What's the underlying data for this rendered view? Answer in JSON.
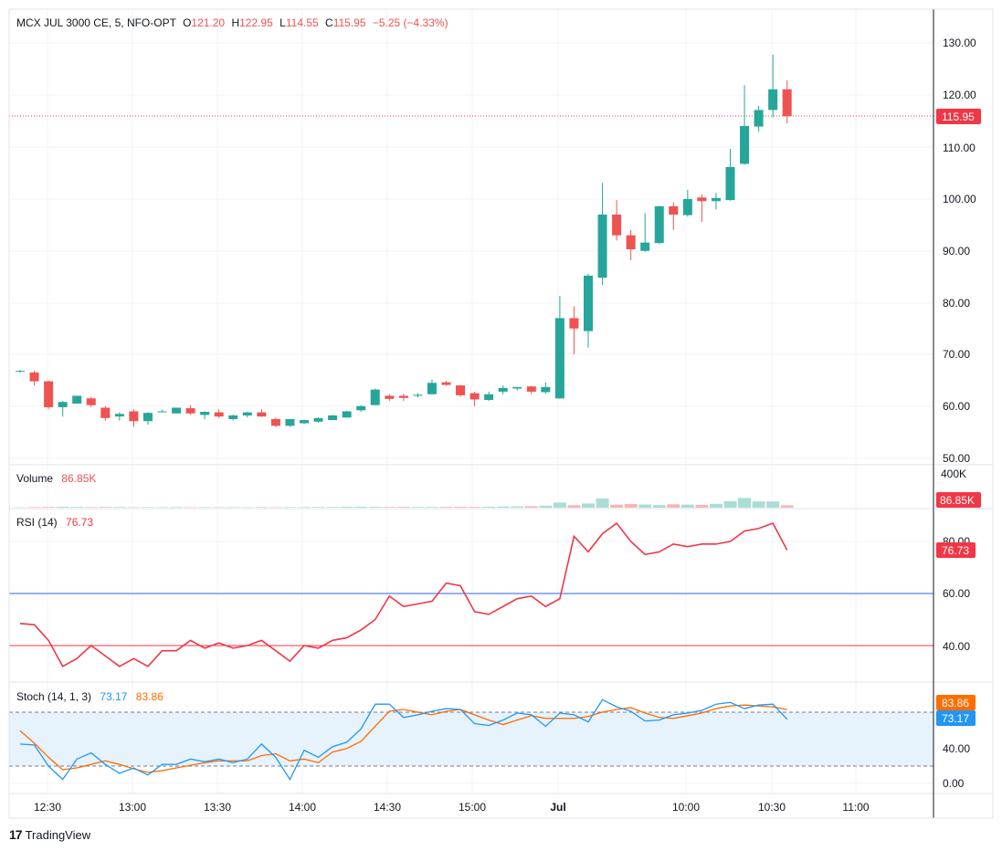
{
  "header": {
    "symbol": "MCX JUL 3000 CE, 5, NFO-OPT",
    "open_label": "O",
    "open": "121.20",
    "high_label": "H",
    "high": "122.95",
    "low_label": "L",
    "low": "114.55",
    "close_label": "C",
    "close": "115.95",
    "change": "−5.25 (−4.33%)"
  },
  "colors": {
    "up": "#26a69a",
    "down": "#ef5350",
    "rsi_line": "#f23645",
    "stoch_k": "#2196f3",
    "stoch_d": "#ff6d00",
    "rsi_upper_band": "#2962ff",
    "rsi_lower_band": "#f23645",
    "stoch_fill": "#e6f2fc",
    "grid": "#f0f3fa",
    "axis_text": "#131722"
  },
  "price_axis": {
    "ticks": [
      "130.00",
      "120.00",
      "110.00",
      "100.00",
      "90.00",
      "80.00",
      "70.00",
      "60.00",
      "50.00"
    ],
    "last_price_label": "115.95"
  },
  "volume_panel": {
    "label": "Volume",
    "value": "86.85K",
    "axis_tick": "400K",
    "badge": "86.85K"
  },
  "rsi_panel": {
    "label": "RSI (14)",
    "value": "76.73",
    "ticks": [
      "80.00",
      "60.00",
      "40.00"
    ],
    "badge": "76.73"
  },
  "stoch_panel": {
    "label": "Stoch (14, 1, 3)",
    "k_value": "73.17",
    "d_value": "83.86",
    "ticks": [
      "40.00",
      "0.00"
    ],
    "k_badge": "73.17",
    "d_badge": "83.86"
  },
  "time_axis": {
    "ticks": [
      "12:30",
      "13:00",
      "13:30",
      "14:00",
      "14:30",
      "15:00",
      "Jul",
      "10:00",
      "10:30",
      "11:00"
    ]
  },
  "brand": {
    "logo": "17",
    "name": "TradingView"
  },
  "chart_data": {
    "type": "candlestick",
    "y_range": [
      50,
      130
    ],
    "candles": [
      {
        "o": 66.8,
        "h": 67.0,
        "l": 66.5,
        "c": 66.8
      },
      {
        "o": 66.5,
        "h": 66.8,
        "l": 64.0,
        "c": 64.8
      },
      {
        "o": 64.8,
        "h": 64.9,
        "l": 59.4,
        "c": 59.8
      },
      {
        "o": 59.8,
        "h": 61.0,
        "l": 58.0,
        "c": 60.8
      },
      {
        "o": 60.5,
        "h": 62.0,
        "l": 60.5,
        "c": 62.0
      },
      {
        "o": 61.5,
        "h": 61.8,
        "l": 59.8,
        "c": 60.2
      },
      {
        "o": 59.7,
        "h": 60.0,
        "l": 57.2,
        "c": 57.7
      },
      {
        "o": 58.0,
        "h": 58.8,
        "l": 57.2,
        "c": 58.5
      },
      {
        "o": 59.0,
        "h": 59.4,
        "l": 56.0,
        "c": 57.1
      },
      {
        "o": 57.1,
        "h": 58.8,
        "l": 56.4,
        "c": 58.7
      },
      {
        "o": 59.0,
        "h": 59.3,
        "l": 58.8,
        "c": 59.0
      },
      {
        "o": 58.6,
        "h": 59.7,
        "l": 58.6,
        "c": 59.7
      },
      {
        "o": 59.6,
        "h": 60.2,
        "l": 58.3,
        "c": 58.6
      },
      {
        "o": 58.3,
        "h": 59.0,
        "l": 57.5,
        "c": 58.9
      },
      {
        "o": 58.8,
        "h": 59.4,
        "l": 57.7,
        "c": 58.0
      },
      {
        "o": 57.5,
        "h": 58.4,
        "l": 57.2,
        "c": 58.2
      },
      {
        "o": 58.2,
        "h": 58.9,
        "l": 57.8,
        "c": 58.8
      },
      {
        "o": 58.8,
        "h": 59.4,
        "l": 57.9,
        "c": 58.0
      },
      {
        "o": 57.5,
        "h": 57.8,
        "l": 55.9,
        "c": 56.2
      },
      {
        "o": 56.2,
        "h": 57.5,
        "l": 56.0,
        "c": 57.5
      },
      {
        "o": 56.7,
        "h": 57.4,
        "l": 56.5,
        "c": 57.3
      },
      {
        "o": 57.0,
        "h": 57.8,
        "l": 56.8,
        "c": 57.7
      },
      {
        "o": 57.3,
        "h": 58.3,
        "l": 57.3,
        "c": 58.2
      },
      {
        "o": 57.8,
        "h": 59.1,
        "l": 57.8,
        "c": 59.0
      },
      {
        "o": 59.2,
        "h": 60.2,
        "l": 58.9,
        "c": 60.0
      },
      {
        "o": 60.2,
        "h": 63.4,
        "l": 60.2,
        "c": 63.2
      },
      {
        "o": 62.0,
        "h": 62.3,
        "l": 61.0,
        "c": 61.4
      },
      {
        "o": 62.0,
        "h": 62.4,
        "l": 61.0,
        "c": 61.6
      },
      {
        "o": 62.0,
        "h": 62.5,
        "l": 61.7,
        "c": 62.2
      },
      {
        "o": 62.3,
        "h": 65.2,
        "l": 62.3,
        "c": 64.5
      },
      {
        "o": 64.6,
        "h": 64.9,
        "l": 63.9,
        "c": 64.1
      },
      {
        "o": 64.0,
        "h": 64.1,
        "l": 61.8,
        "c": 62.1
      },
      {
        "o": 62.5,
        "h": 62.8,
        "l": 60.0,
        "c": 61.3
      },
      {
        "o": 61.2,
        "h": 62.8,
        "l": 61.0,
        "c": 62.3
      },
      {
        "o": 62.8,
        "h": 64.0,
        "l": 62.3,
        "c": 63.5
      },
      {
        "o": 63.4,
        "h": 63.6,
        "l": 63.0,
        "c": 63.7
      },
      {
        "o": 63.8,
        "h": 63.9,
        "l": 62.3,
        "c": 62.8
      },
      {
        "o": 62.7,
        "h": 64.6,
        "l": 62.4,
        "c": 63.7
      },
      {
        "o": 61.5,
        "h": 81.3,
        "l": 61.4,
        "c": 77.0
      },
      {
        "o": 77.0,
        "h": 79.3,
        "l": 70.0,
        "c": 75.0
      },
      {
        "o": 74.5,
        "h": 85.6,
        "l": 71.3,
        "c": 85.2
      },
      {
        "o": 84.8,
        "h": 103.1,
        "l": 83.4,
        "c": 97.0
      },
      {
        "o": 97.0,
        "h": 99.8,
        "l": 92.0,
        "c": 93.0
      },
      {
        "o": 93.0,
        "h": 94.0,
        "l": 88.2,
        "c": 90.3
      },
      {
        "o": 90.0,
        "h": 97.3,
        "l": 89.8,
        "c": 91.6
      },
      {
        "o": 91.5,
        "h": 98.7,
        "l": 91.3,
        "c": 98.6
      },
      {
        "o": 98.6,
        "h": 99.4,
        "l": 94.0,
        "c": 97.0
      },
      {
        "o": 96.9,
        "h": 101.8,
        "l": 96.6,
        "c": 100.0
      },
      {
        "o": 100.3,
        "h": 100.9,
        "l": 95.6,
        "c": 99.6
      },
      {
        "o": 99.6,
        "h": 101.2,
        "l": 98.0,
        "c": 100.2
      },
      {
        "o": 99.8,
        "h": 109.7,
        "l": 99.7,
        "c": 106.2
      },
      {
        "o": 106.8,
        "h": 122.0,
        "l": 106.6,
        "c": 114.1
      },
      {
        "o": 114.0,
        "h": 118.0,
        "l": 113.0,
        "c": 117.2
      },
      {
        "o": 117.2,
        "h": 127.9,
        "l": 115.8,
        "c": 121.2
      },
      {
        "o": 121.2,
        "h": 122.9,
        "l": 114.6,
        "c": 116.0
      }
    ],
    "volume": [
      4,
      6,
      8,
      11,
      9,
      6,
      8,
      7,
      5,
      6,
      5,
      6,
      5,
      6,
      5,
      6,
      5,
      6,
      5,
      6,
      6,
      7,
      7,
      10,
      12,
      9,
      8,
      9,
      7,
      8,
      9,
      10,
      9,
      12,
      14,
      15,
      17,
      24,
      61,
      29,
      50,
      108,
      35,
      44,
      38,
      31,
      40,
      36,
      33,
      46,
      78,
      115,
      74,
      74,
      28
    ],
    "rsi": [
      48.5,
      48,
      42,
      32,
      35,
      40,
      36,
      32,
      35,
      32,
      38,
      38,
      42,
      39,
      41,
      39,
      40,
      42,
      38,
      34,
      40,
      39,
      42,
      43,
      46,
      50,
      59,
      55,
      56,
      57,
      64,
      63,
      53,
      52,
      55,
      58,
      59,
      55,
      58,
      82,
      76,
      83,
      87,
      80,
      75,
      76,
      79,
      78,
      79,
      79,
      80,
      84,
      85,
      87,
      76.7
    ],
    "stoch_k": [
      45,
      44,
      20,
      5,
      28,
      35,
      22,
      12,
      18,
      10,
      22,
      22,
      28,
      25,
      28,
      24,
      28,
      45,
      30,
      5,
      38,
      30,
      42,
      47,
      62,
      90,
      90,
      75,
      78,
      82,
      85,
      84,
      68,
      66,
      72,
      80,
      78,
      65,
      80,
      78,
      70,
      95,
      87,
      82,
      71,
      72,
      78,
      80,
      83,
      90,
      92,
      85,
      89,
      90,
      73
    ],
    "stoch_d": [
      60,
      46,
      30,
      16,
      18,
      22,
      26,
      22,
      17,
      13,
      15,
      18,
      21,
      24,
      26,
      26,
      26,
      32,
      34,
      26,
      28,
      24,
      36,
      40,
      48,
      65,
      82,
      84,
      81,
      78,
      82,
      84,
      78,
      72,
      67,
      72,
      77,
      74,
      74,
      74,
      76,
      81,
      84,
      86,
      80,
      75,
      74,
      77,
      80,
      85,
      88,
      89,
      88,
      87,
      83.9
    ],
    "rsi_bands": [
      60,
      40
    ],
    "stoch_bands": [
      73,
      20
    ]
  }
}
